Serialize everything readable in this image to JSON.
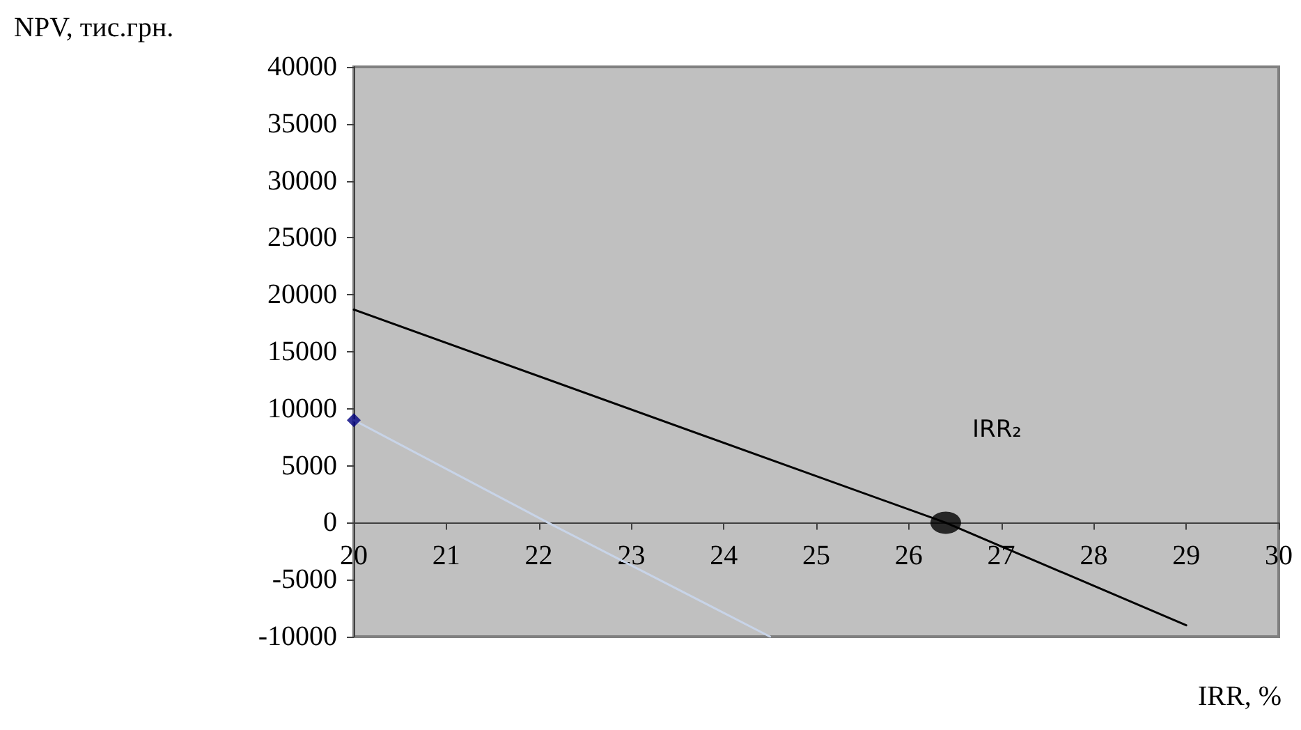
{
  "chart_data": {
    "type": "line",
    "xlabel": "IRR, %",
    "ylabel": "NPV, тис.грн.",
    "xlim": [
      20,
      30
    ],
    "xticks": [
      20,
      21,
      22,
      23,
      24,
      25,
      26,
      27,
      28,
      29,
      30
    ],
    "ylim": [
      -10000,
      40000
    ],
    "yticks": [
      -10000,
      -5000,
      0,
      5000,
      10000,
      15000,
      20000,
      25000,
      30000,
      35000,
      40000
    ],
    "grid": false,
    "series": [
      {
        "color": "#000000",
        "marker": "none",
        "x": [
          20,
          26.4,
          29
        ],
        "values": [
          18700,
          0,
          -9000
        ]
      },
      {
        "color": "#c8d4e8",
        "marker": "none",
        "x": [
          20,
          22.1,
          24.5
        ],
        "values": [
          9000,
          0,
          -10000
        ]
      },
      {
        "type": "scatter",
        "color": "#000080",
        "marker": "diamond",
        "x": [
          20
        ],
        "values": [
          9000
        ]
      },
      {
        "type": "scatter",
        "color": "#000000",
        "marker": "circle",
        "x": [
          26.4
        ],
        "values": [
          0
        ]
      }
    ],
    "annotations": [
      "IRR₂"
    ]
  }
}
